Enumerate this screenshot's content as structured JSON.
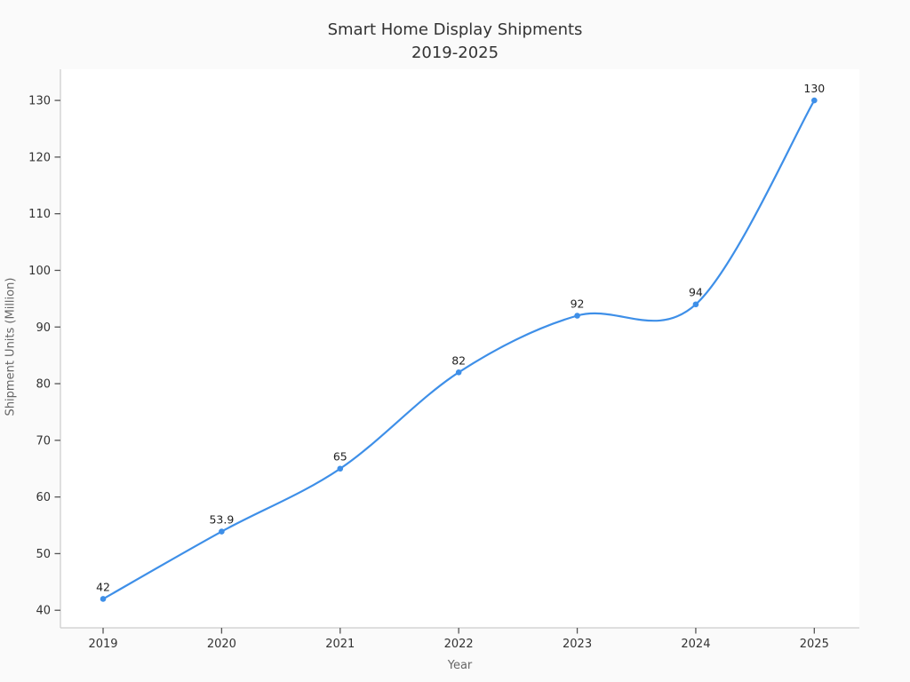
{
  "chart_data": {
    "type": "line",
    "title": "Smart Home Display Shipments",
    "subtitle": "2019-2025",
    "xlabel": "Year",
    "ylabel": "Shipment Units (Million)",
    "x": [
      2019,
      2020,
      2021,
      2022,
      2023,
      2024,
      2025
    ],
    "values": [
      42,
      53.9,
      65,
      82,
      92,
      94,
      130
    ],
    "point_labels": [
      "42",
      "53.9",
      "65",
      "82",
      "92",
      "94",
      "130"
    ],
    "xticks": [
      2019,
      2020,
      2021,
      2022,
      2023,
      2024,
      2025
    ],
    "yticks": [
      40,
      50,
      60,
      70,
      80,
      90,
      100,
      110,
      120,
      130
    ],
    "xlim": [
      2018.64,
      2025.38
    ],
    "ylim": [
      36.9,
      135.5
    ],
    "line_shape": "spline",
    "grid": false,
    "legend": "none",
    "colors": {
      "line": "#3e8fe8",
      "marker": "#3e8fe8",
      "title_text": "#333333",
      "tick_text": "#333333",
      "axis_label_text": "#666666",
      "point_label_text": "#1f1f1f",
      "spine": "#cccccc",
      "tick_mark": "#555555",
      "plot_bg": "#ffffff",
      "figure_bg": "#fafafa"
    }
  }
}
